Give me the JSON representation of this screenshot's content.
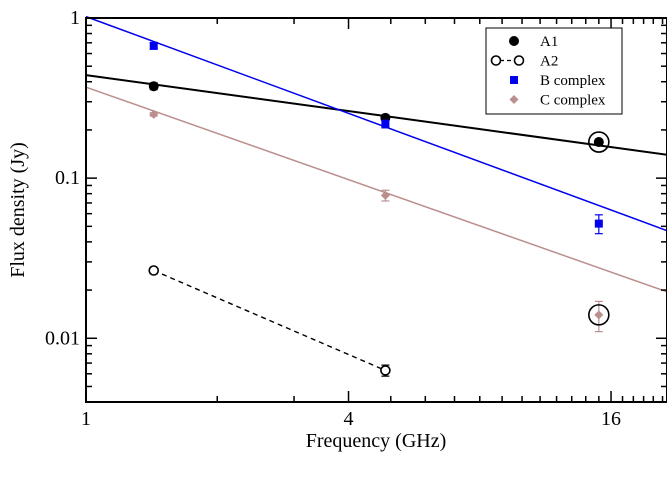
{
  "chart_data": {
    "type": "scatter",
    "xscale": "log2",
    "yscale": "log10",
    "xlim": [
      1,
      21.5
    ],
    "ylim": [
      0.004,
      1
    ],
    "xlabel": "Frequency (GHz)",
    "ylabel": "Flux density (Jy)",
    "xticks": [
      {
        "value": 1,
        "label": "1"
      },
      {
        "value": 4,
        "label": "4"
      },
      {
        "value": 16,
        "label": "16"
      }
    ],
    "yticks": [
      {
        "value": 0.01,
        "label": "0.01"
      },
      {
        "value": 0.1,
        "label": "0.1"
      },
      {
        "value": 1,
        "label": "1"
      }
    ],
    "legend_position": "top-right",
    "series": [
      {
        "name": "A1",
        "color": "#000000",
        "marker": "filled-circle",
        "points": [
          {
            "x": 1.43,
            "y": 0.375,
            "err": 0.018
          },
          {
            "x": 4.86,
            "y": 0.238,
            "err": 0.01
          },
          {
            "x": 15.0,
            "y": 0.168,
            "err": 0.006,
            "circled": true
          }
        ],
        "fit": {
          "x": [
            1,
            21.5
          ],
          "y": [
            0.44,
            0.14
          ]
        }
      },
      {
        "name": "A2",
        "color": "#000000",
        "marker": "open-circle",
        "dashed_line": true,
        "points": [
          {
            "x": 1.43,
            "y": 0.0265,
            "err": 0.0012
          },
          {
            "x": 4.86,
            "y": 0.0063,
            "err": 0.0005
          }
        ]
      },
      {
        "name": "B complex",
        "color": "#0000ee",
        "marker": "square",
        "points": [
          {
            "x": 1.43,
            "y": 0.67,
            "err": 0.03
          },
          {
            "x": 4.86,
            "y": 0.218,
            "err": 0.012
          },
          {
            "x": 15.0,
            "y": 0.052,
            "err": 0.007
          }
        ],
        "fit": {
          "x": [
            1,
            21.5
          ],
          "y": [
            1.02,
            0.047
          ]
        }
      },
      {
        "name": "C complex",
        "color": "#bc8f8f",
        "marker": "diamond",
        "points": [
          {
            "x": 1.43,
            "y": 0.25,
            "err": 0.006
          },
          {
            "x": 4.86,
            "y": 0.078,
            "err": 0.006
          },
          {
            "x": 15.0,
            "y": 0.014,
            "err": 0.003,
            "circled": true
          }
        ],
        "fit": {
          "x": [
            1,
            21.5
          ],
          "y": [
            0.37,
            0.0195
          ]
        }
      }
    ]
  }
}
